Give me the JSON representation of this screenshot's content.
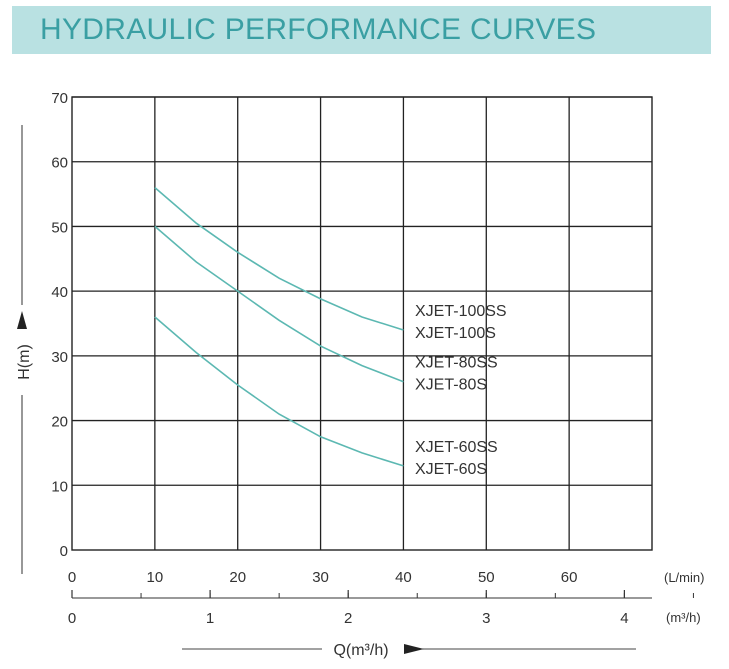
{
  "title": "HYDRAULIC PERFORMANCE CURVES",
  "colors": {
    "banner_bg": "#b9e1e2",
    "title": "#3a9fa3",
    "curve": "#5cb8b2",
    "grid": "#222222"
  },
  "chart_data": {
    "type": "line",
    "ylabel": "H(m)",
    "xlabel": "Q(m³/h)",
    "x_unit_top": "(L/min)",
    "x_unit_bottom": "(m³/h)",
    "xlim": [
      0,
      70
    ],
    "ylim": [
      0,
      70
    ],
    "grid": true,
    "x_ticks_lmin": [
      "0",
      "10",
      "20",
      "30",
      "40",
      "50",
      "60"
    ],
    "x_ticks_m3h": [
      "0",
      "1",
      "2",
      "3",
      "4"
    ],
    "y_ticks": [
      "0",
      "10",
      "20",
      "30",
      "40",
      "50",
      "60",
      "70"
    ],
    "series": [
      {
        "name": "XJET-100SS / XJET-100S",
        "labels": [
          "XJET-100SS",
          "XJET-100S"
        ],
        "x": [
          10,
          15,
          20,
          25,
          30,
          35,
          40
        ],
        "y": [
          56,
          50.5,
          46,
          42,
          38.8,
          36,
          34
        ]
      },
      {
        "name": "XJET-80SS / XJET-80S",
        "labels": [
          "XJET-80SS",
          "XJET-80S"
        ],
        "x": [
          10,
          15,
          20,
          25,
          30,
          35,
          40
        ],
        "y": [
          50,
          44.5,
          40,
          35.5,
          31.5,
          28.5,
          26
        ]
      },
      {
        "name": "XJET-60SS / XJET-60S",
        "labels": [
          "XJET-60SS",
          "XJET-60S"
        ],
        "x": [
          10,
          15,
          20,
          25,
          30,
          35,
          40
        ],
        "y": [
          36,
          30.5,
          25.5,
          21,
          17.5,
          15,
          13
        ]
      }
    ]
  }
}
